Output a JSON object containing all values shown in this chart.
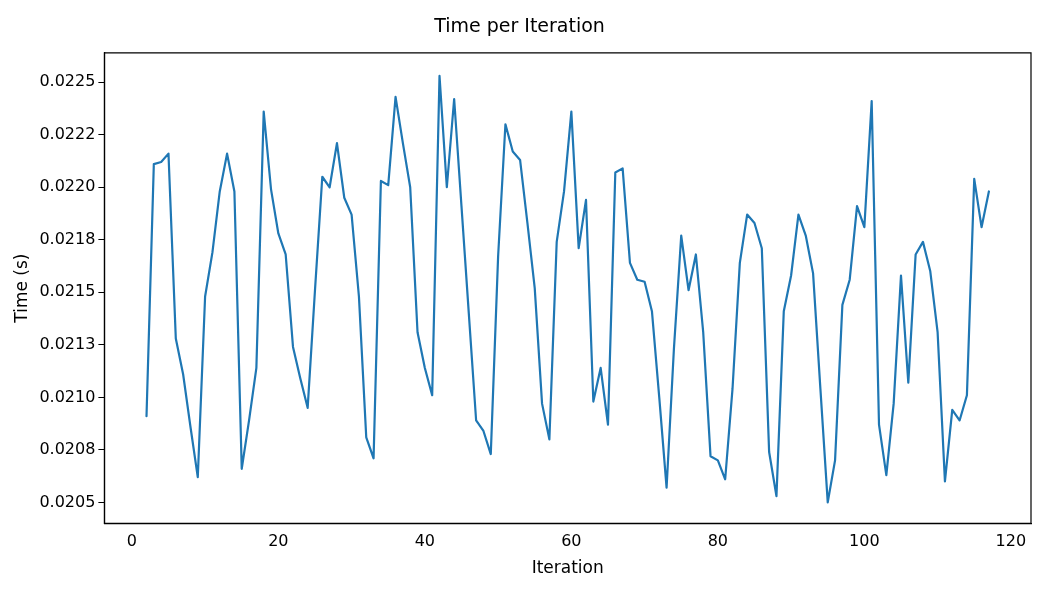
{
  "chart_data": {
    "type": "line",
    "title": "Time per Iteration",
    "xlabel": "Iteration",
    "ylabel": "Time (s)",
    "x": [
      2,
      3,
      4,
      5,
      6,
      7,
      8,
      9,
      10,
      11,
      12,
      13,
      14,
      15,
      16,
      17,
      18,
      19,
      20,
      21,
      22,
      23,
      24,
      25,
      26,
      27,
      28,
      29,
      30,
      31,
      32,
      33,
      34,
      35,
      36,
      37,
      38,
      39,
      40,
      41,
      42,
      43,
      44,
      45,
      46,
      47,
      48,
      49,
      50,
      51,
      52,
      53,
      54,
      55,
      56,
      57,
      58,
      59,
      60,
      61,
      62,
      63,
      64,
      65,
      66,
      67,
      68,
      69,
      70,
      71,
      72,
      73,
      74,
      75,
      76,
      77,
      78,
      79,
      80,
      81,
      82,
      83,
      84,
      85,
      86,
      87,
      88,
      89,
      90,
      91,
      92,
      93,
      94,
      95,
      96,
      97,
      98,
      99,
      100,
      101,
      102,
      103,
      104,
      105,
      106,
      107,
      108,
      109,
      110,
      111,
      112,
      113,
      114,
      115,
      116,
      117
    ],
    "series": [
      {
        "color": "#1f77b4",
        "values": [
          0.02091,
          0.02211,
          0.02212,
          0.02216,
          0.02128,
          0.02111,
          0.02086,
          0.02062,
          0.02148,
          0.02169,
          0.02198,
          0.02216,
          0.02198,
          0.02066,
          0.02089,
          0.02114,
          0.02236,
          0.02199,
          0.02178,
          0.02168,
          0.02124,
          0.02109,
          0.02095,
          0.02151,
          0.02205,
          0.022,
          0.02221,
          0.02195,
          0.02187,
          0.02148,
          0.02081,
          0.02071,
          0.02203,
          0.02201,
          0.02243,
          0.02221,
          0.022,
          0.02131,
          0.02114,
          0.02101,
          0.02253,
          0.022,
          0.02242,
          0.02191,
          0.0214,
          0.02089,
          0.02084,
          0.02073,
          0.02167,
          0.0223,
          0.02217,
          0.02213,
          0.02183,
          0.02152,
          0.02097,
          0.0208,
          0.02174,
          0.02198,
          0.02236,
          0.02171,
          0.02194,
          0.02098,
          0.02114,
          0.02087,
          0.02207,
          0.02209,
          0.02164,
          0.02156,
          0.02155,
          0.02141,
          0.021,
          0.02057,
          0.02123,
          0.02177,
          0.02151,
          0.02168,
          0.02131,
          0.02072,
          0.0207,
          0.02061,
          0.02104,
          0.02164,
          0.02187,
          0.02183,
          0.02171,
          0.02074,
          0.02053,
          0.02141,
          0.02158,
          0.02187,
          0.02177,
          0.02159,
          0.02104,
          0.0205,
          0.0207,
          0.02144,
          0.02156,
          0.02191,
          0.02181,
          0.02241,
          0.02087,
          0.02063,
          0.02097,
          0.02158,
          0.02107,
          0.02168,
          0.02174,
          0.0216,
          0.02131,
          0.0206,
          0.02094,
          0.02089,
          0.02101,
          0.02204,
          0.02181,
          0.02198
        ]
      }
    ],
    "xlim": [
      -3.75,
      122.75
    ],
    "xticks": [
      0,
      20,
      40,
      60,
      80,
      100,
      120
    ],
    "ylim": [
      0.0204,
      0.02264
    ],
    "yticks": [
      0.0205,
      {
        "value": 0.02075,
        "label": "0.0208"
      },
      {
        "value": 0.021,
        "label": "0.0210"
      },
      {
        "value": 0.02125,
        "label": "0.0213"
      },
      0.0215,
      {
        "value": 0.02175,
        "label": "0.0218"
      },
      {
        "value": 0.022,
        "label": "0.0220"
      },
      {
        "value": 0.02225,
        "label": "0.0222"
      },
      0.0225
    ],
    "grid": false,
    "legend": false,
    "marker": "none",
    "line_style": "solid"
  }
}
